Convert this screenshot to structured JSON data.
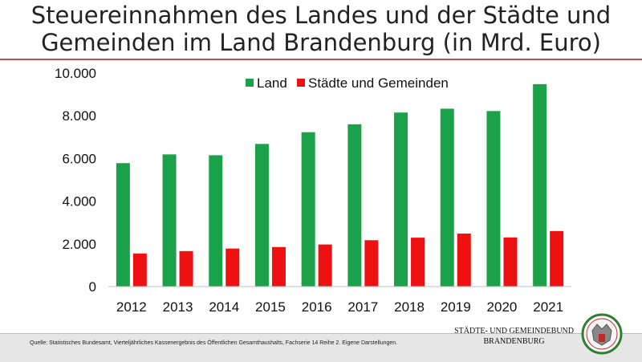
{
  "title_line1": "Steuereinnahmen des Landes und der Städte und",
  "title_line2": "Gemeinden im Land Brandenburg (in Mrd. Euro)",
  "colors": {
    "land": "#1aa14a",
    "staedte": "#ee1111",
    "accent": "#c0504d"
  },
  "chart_data": {
    "type": "bar",
    "categories": [
      "2012",
      "2013",
      "2014",
      "2015",
      "2016",
      "2017",
      "2018",
      "2019",
      "2020",
      "2021"
    ],
    "series": [
      {
        "name": "Land",
        "values": [
          5780,
          6190,
          6150,
          6680,
          7230,
          7600,
          8150,
          8330,
          8220,
          9480
        ]
      },
      {
        "name": "Städte und Gemeinden",
        "values": [
          1550,
          1660,
          1780,
          1850,
          1970,
          2170,
          2290,
          2480,
          2300,
          2600
        ]
      }
    ],
    "ylim": [
      0,
      10000
    ],
    "yticks": [
      "0",
      "2.000",
      "4.000",
      "6.000",
      "8.000",
      "10.000"
    ],
    "ytick_values": [
      0,
      2000,
      4000,
      6000,
      8000,
      10000
    ],
    "grid": false,
    "legend_position": "top"
  },
  "footer": {
    "source": "Quelle: Statistisches Bundesamt, Vierteljährliches Kassenergebnis des Öffentlichen Gesamthaushalts, Fachserie 14 Reihe 2. Eigene Darstellungen.",
    "org_line1": "STÄDTE- UND GEMEINDEBUND",
    "org_line2": "BRANDENBURG"
  }
}
